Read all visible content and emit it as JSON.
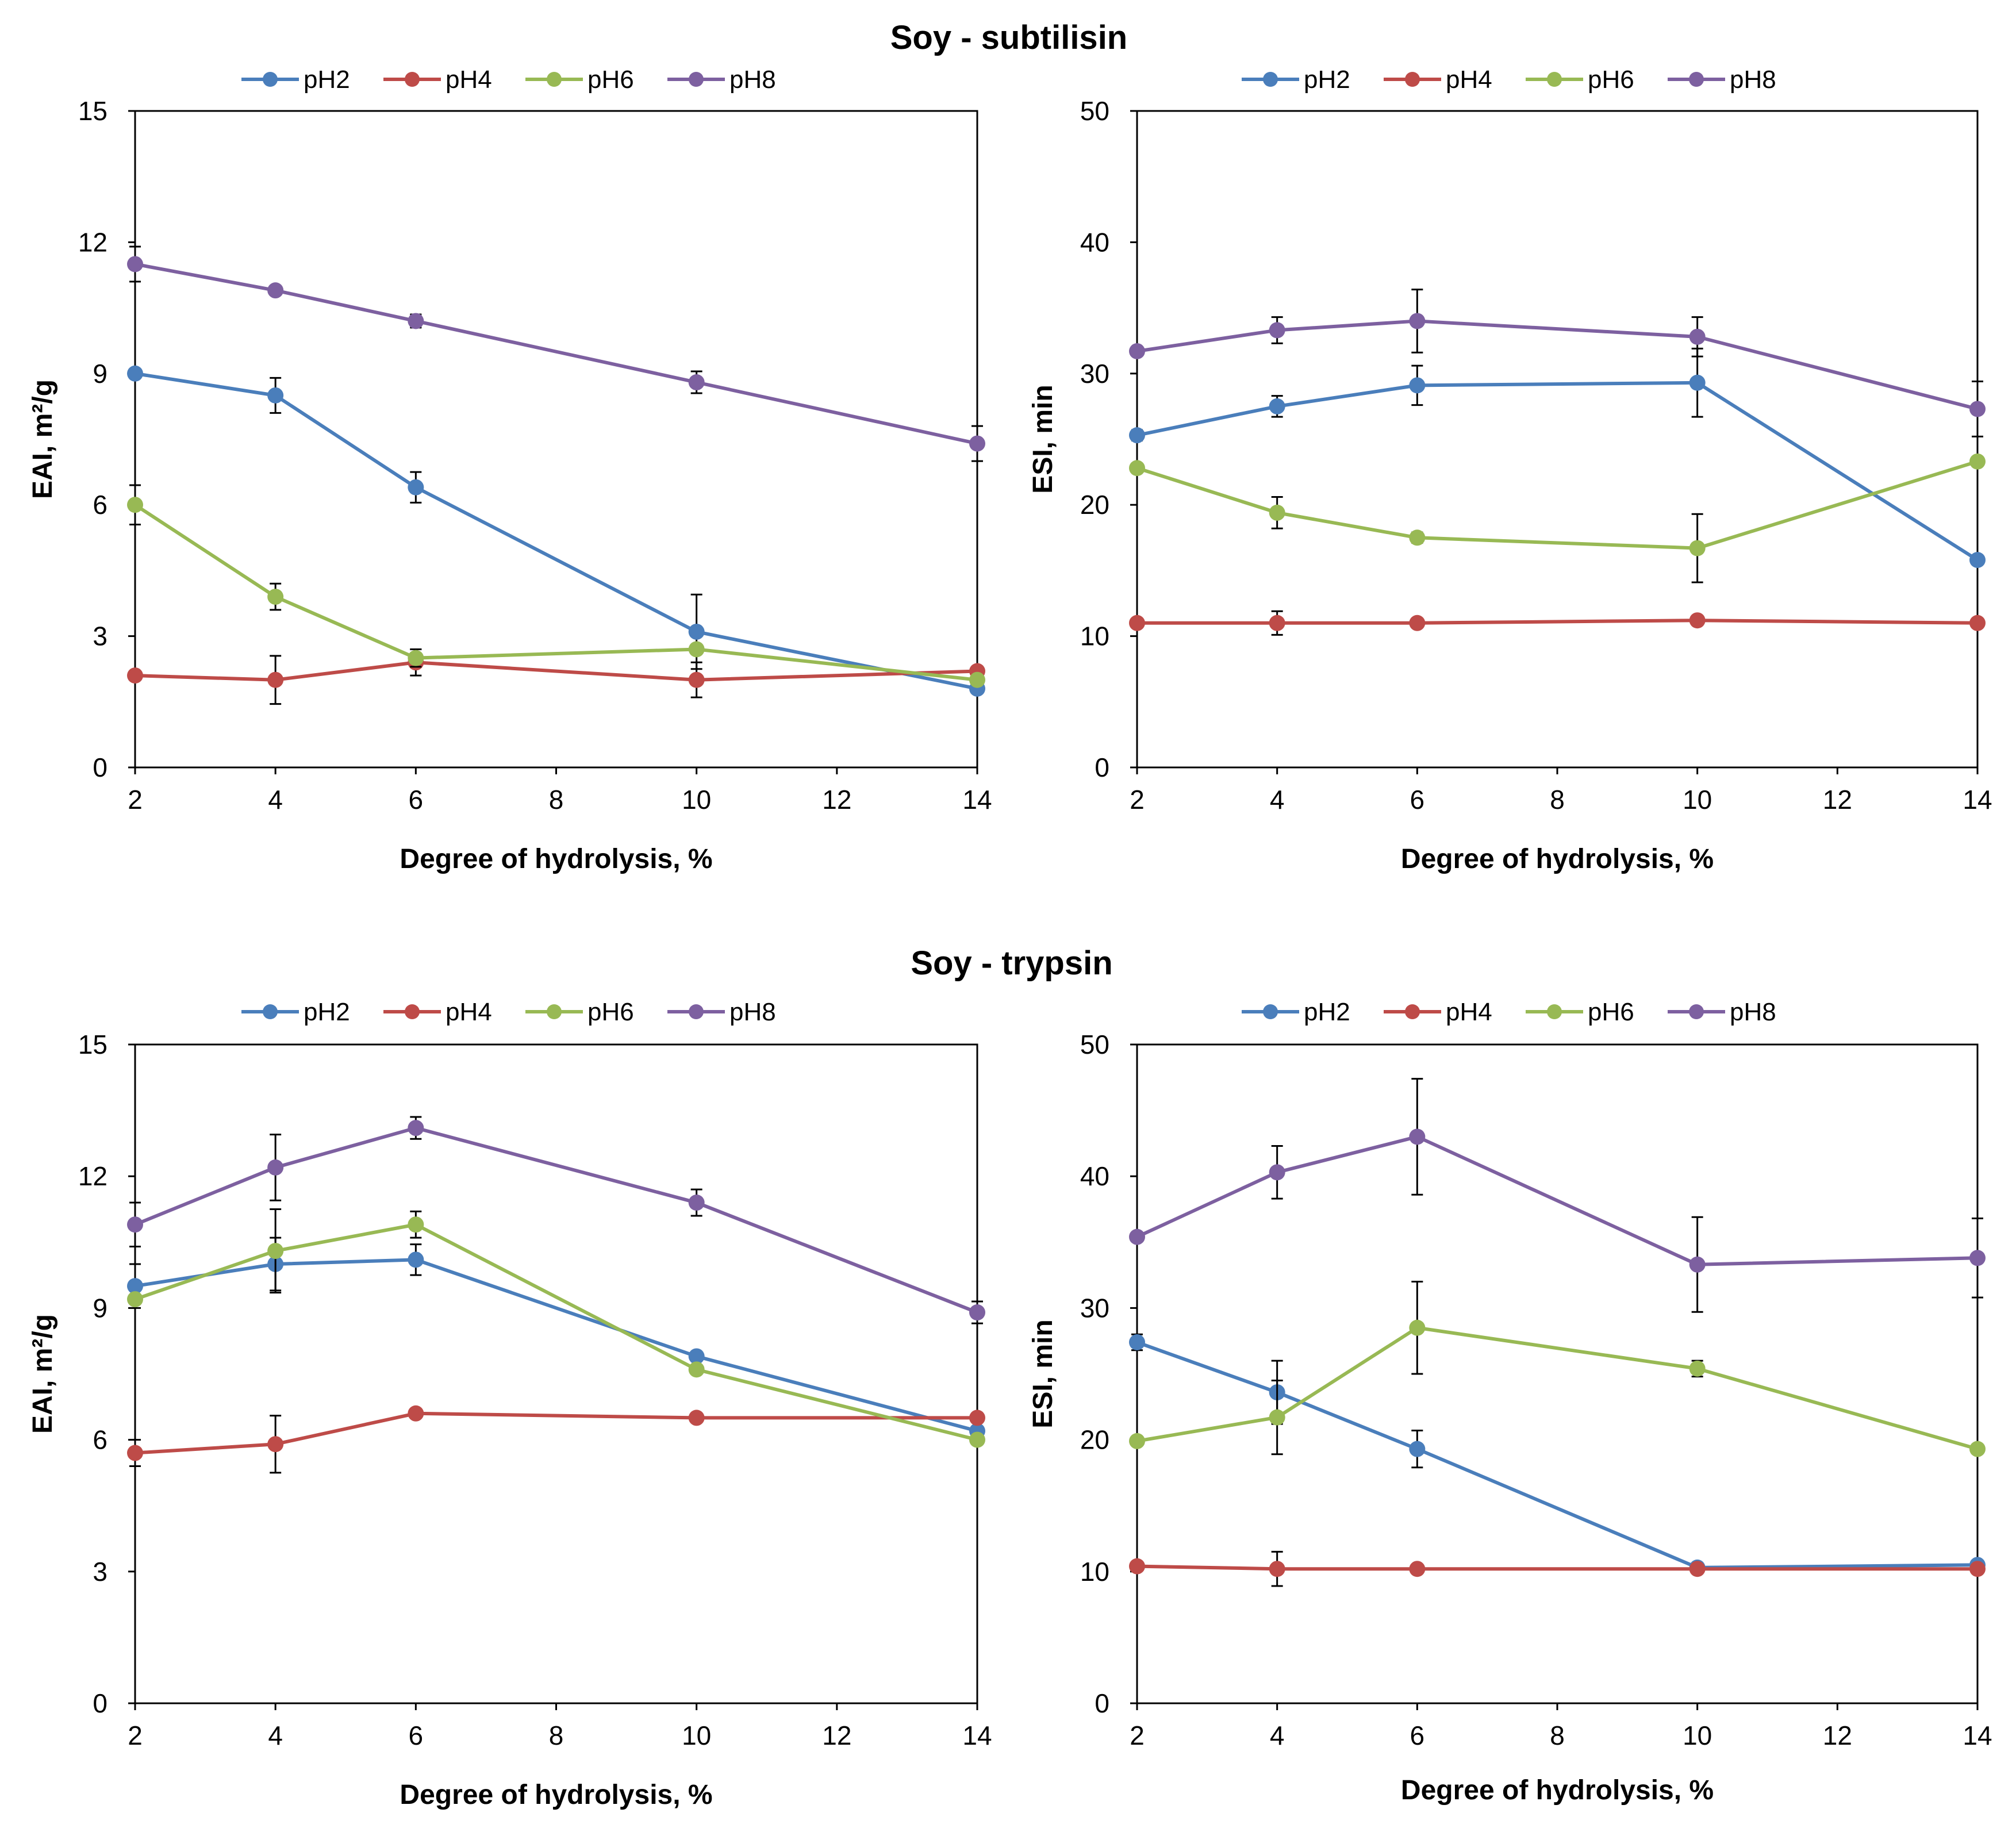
{
  "chart_data": [
    {
      "type": "line",
      "title": "Soy - subtilisin",
      "xlabel": "Degree of hydrolysis, %",
      "ylabel": "EAI, m²/g",
      "xlim": [
        2,
        14
      ],
      "ylim": [
        0,
        15
      ],
      "xticks": [
        2,
        4,
        6,
        8,
        10,
        12,
        14
      ],
      "yticks": [
        0,
        3,
        6,
        9,
        12,
        15
      ],
      "x": [
        2,
        4,
        6,
        10,
        14
      ],
      "legend_position": "top",
      "series": [
        {
          "name": "pH2",
          "color": "#4A7EBB",
          "values": [
            9.0,
            8.5,
            6.4,
            3.1,
            1.8
          ],
          "errors": [
            0,
            0.4,
            0.35,
            0.85,
            0
          ]
        },
        {
          "name": "pH4",
          "color": "#BE4B48",
          "values": [
            2.1,
            2.0,
            2.4,
            2.0,
            2.2
          ],
          "errors": [
            0,
            0.55,
            0.3,
            0.4,
            0
          ]
        },
        {
          "name": "pH6",
          "color": "#98B954",
          "values": [
            6.0,
            3.9,
            2.5,
            2.7,
            2.0
          ],
          "errors": [
            0.45,
            0.3,
            0.2,
            0,
            0
          ]
        },
        {
          "name": "pH8",
          "color": "#7D60A0",
          "values": [
            11.5,
            10.9,
            10.2,
            8.8,
            7.4
          ],
          "errors": [
            0.4,
            0,
            0.15,
            0.25,
            0.4
          ]
        }
      ]
    },
    {
      "type": "line",
      "title": "",
      "xlabel": "Degree of hydrolysis, %",
      "ylabel": "ESI, min",
      "xlim": [
        2,
        14
      ],
      "ylim": [
        0,
        50
      ],
      "xticks": [
        2,
        4,
        6,
        8,
        10,
        12,
        14
      ],
      "yticks": [
        0,
        10,
        20,
        30,
        40,
        50
      ],
      "x": [
        2,
        4,
        6,
        10,
        14
      ],
      "legend_position": "top",
      "series": [
        {
          "name": "pH2",
          "color": "#4A7EBB",
          "values": [
            25.3,
            27.5,
            29.1,
            29.3,
            15.8
          ],
          "errors": [
            0.4,
            0.8,
            1.5,
            2.6,
            0
          ]
        },
        {
          "name": "pH4",
          "color": "#BE4B48",
          "values": [
            11.0,
            11.0,
            11.0,
            11.2,
            11.0
          ],
          "errors": [
            0,
            0.9,
            0,
            0,
            0
          ]
        },
        {
          "name": "pH6",
          "color": "#98B954",
          "values": [
            22.8,
            19.4,
            17.5,
            16.7,
            23.3
          ],
          "errors": [
            0,
            1.2,
            0.4,
            2.6,
            0
          ]
        },
        {
          "name": "pH8",
          "color": "#7D60A0",
          "values": [
            31.7,
            33.3,
            34.0,
            32.8,
            27.3
          ],
          "errors": [
            0,
            1.0,
            2.4,
            1.5,
            2.1
          ]
        }
      ]
    },
    {
      "type": "line",
      "title": "Soy - trypsin",
      "xlabel": "Degree of hydrolysis, %",
      "ylabel": "EAI, m²/g",
      "xlim": [
        2,
        14
      ],
      "ylim": [
        0,
        15
      ],
      "xticks": [
        2,
        4,
        6,
        8,
        10,
        12,
        14
      ],
      "yticks": [
        0,
        3,
        6,
        9,
        12,
        15
      ],
      "x": [
        2,
        4,
        6,
        10,
        14
      ],
      "legend_position": "top",
      "series": [
        {
          "name": "pH2",
          "color": "#4A7EBB",
          "values": [
            9.5,
            10.0,
            10.1,
            7.9,
            6.2
          ],
          "errors": [
            0.5,
            0.6,
            0.35,
            0,
            0
          ]
        },
        {
          "name": "pH4",
          "color": "#BE4B48",
          "values": [
            5.7,
            5.9,
            6.6,
            6.5,
            6.5
          ],
          "errors": [
            0.3,
            0.65,
            0,
            0,
            0
          ]
        },
        {
          "name": "pH6",
          "color": "#98B954",
          "values": [
            9.2,
            10.3,
            10.9,
            7.6,
            6.0
          ],
          "errors": [
            0,
            0.95,
            0.3,
            0,
            0
          ]
        },
        {
          "name": "pH8",
          "color": "#7D60A0",
          "values": [
            10.9,
            12.2,
            13.1,
            11.4,
            8.9
          ],
          "errors": [
            0.5,
            0.75,
            0.25,
            0.3,
            0.25
          ]
        }
      ]
    },
    {
      "type": "line",
      "title": "",
      "xlabel": "Degree of hydrolysis, %",
      "ylabel": "ESI, min",
      "xlim": [
        2,
        14
      ],
      "ylim": [
        0,
        50
      ],
      "xticks": [
        2,
        4,
        6,
        8,
        10,
        12,
        14
      ],
      "yticks": [
        0,
        10,
        20,
        30,
        40,
        50
      ],
      "x": [
        2,
        4,
        6,
        10,
        14
      ],
      "legend_position": "top",
      "series": [
        {
          "name": "pH2",
          "color": "#4A7EBB",
          "values": [
            27.4,
            23.6,
            19.3,
            10.3,
            10.5
          ],
          "errors": [
            0.6,
            2.4,
            1.4,
            0,
            0
          ]
        },
        {
          "name": "pH4",
          "color": "#BE4B48",
          "values": [
            10.4,
            10.2,
            10.2,
            10.2,
            10.2
          ],
          "errors": [
            0,
            1.3,
            0,
            0,
            0
          ]
        },
        {
          "name": "pH6",
          "color": "#98B954",
          "values": [
            19.9,
            21.7,
            28.5,
            25.4,
            19.3
          ],
          "errors": [
            0,
            2.8,
            3.5,
            0.6,
            0
          ]
        },
        {
          "name": "pH8",
          "color": "#7D60A0",
          "values": [
            35.4,
            40.3,
            43.0,
            33.3,
            33.8
          ],
          "errors": [
            0,
            2.0,
            4.4,
            3.6,
            3.0
          ]
        }
      ]
    }
  ]
}
